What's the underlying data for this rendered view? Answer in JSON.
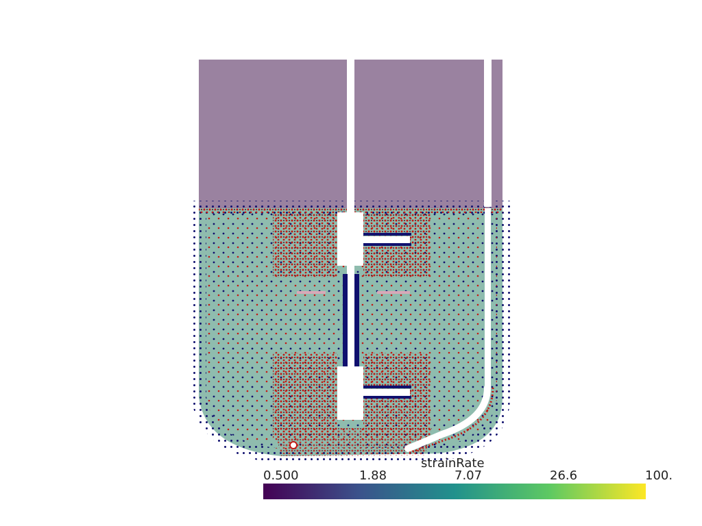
{
  "colorbar": {
    "title": "strainRate",
    "ticks": [
      "0.500",
      "1.88",
      "7.07",
      "26.6",
      "100."
    ],
    "range": [
      0.5,
      100
    ],
    "scale": "log",
    "colormap": [
      "#440154",
      "#3b528b",
      "#21918c",
      "#5ec962",
      "#fde725"
    ]
  },
  "colors": {
    "gas_phase": "#9a82a0",
    "liquid_phase": "#8fbcae",
    "particle_low": "#10106e",
    "particle_high": "#c21a14",
    "background": "#ffffff"
  }
}
